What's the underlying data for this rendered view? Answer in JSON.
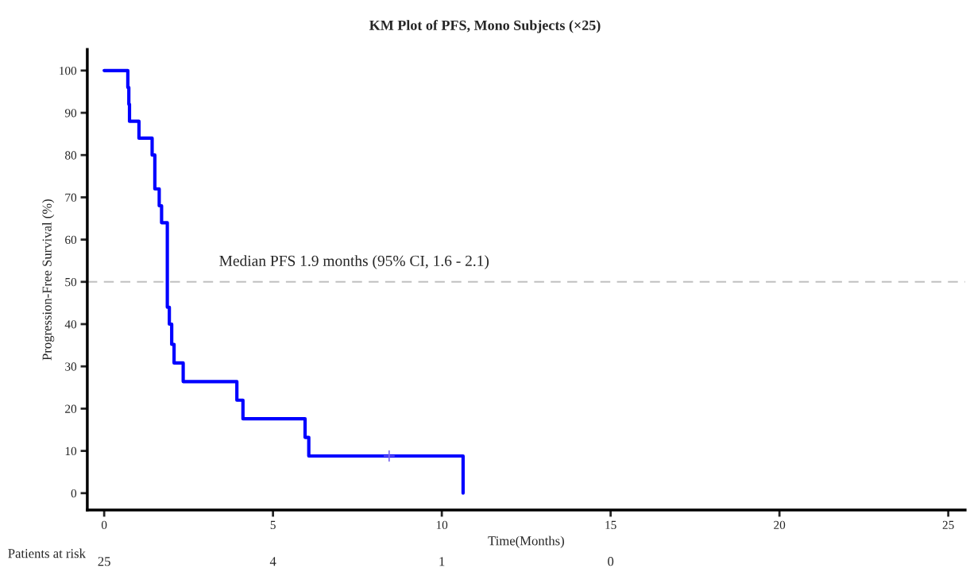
{
  "chart_data": {
    "type": "step",
    "title": "KM Plot of PFS, Mono Subjects (×25)",
    "xlabel": "Time(Months)",
    "ylabel": "Progression-Free Survival (%)",
    "series": [
      {
        "color": "#0000ff",
        "x": [
          0,
          0.7,
          0.73,
          0.75,
          1.03,
          1.42,
          1.5,
          1.63,
          1.7,
          1.87,
          1.93,
          2.0,
          2.07,
          2.34,
          3.93,
          4.11,
          5.95,
          6.06,
          10.63,
          10.63
        ],
        "values": [
          100,
          96,
          92,
          88,
          84,
          80,
          72,
          68,
          64,
          44,
          40,
          35.2,
          30.8,
          26.4,
          22,
          17.6,
          13.2,
          8.8,
          8.8,
          0
        ]
      },
      {
        "type": "scatter",
        "color": "#7b68ee",
        "marker": "cross",
        "x": [
          8.44
        ],
        "values": [
          8.8
        ]
      }
    ],
    "xlim": [
      -0.5,
      25.5
    ],
    "ylim": [
      -4,
      105
    ],
    "xticks": [
      0,
      5,
      10,
      15,
      20,
      25
    ],
    "yticks": [
      0,
      10,
      20,
      30,
      40,
      50,
      60,
      70,
      80,
      90,
      100
    ],
    "ref_lines": [
      {
        "axis": "y",
        "value": 50,
        "label": "Median PFS 1.9 months (95% CI, 1.6 - 2.1)",
        "color": "#c0c0c0",
        "line_style": "dashed"
      }
    ],
    "annotations": [
      "Patients at risk",
      "25",
      "4",
      "1",
      "0"
    ],
    "grid": false,
    "legend": false
  }
}
